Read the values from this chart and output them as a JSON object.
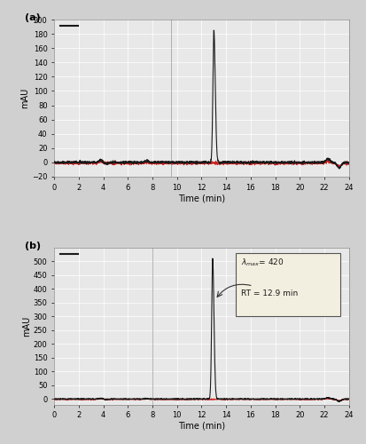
{
  "fig_bg": "#d0d0d0",
  "plot_bg": "#e8e8e8",
  "grid_color": "#ffffff",
  "panel_a": {
    "label": "(a)",
    "ylabel": "mAU",
    "xlabel": "Time (min)",
    "xlim": [
      0,
      24
    ],
    "ylim": [
      -20,
      200
    ],
    "yticks": [
      -20,
      0,
      20,
      40,
      60,
      80,
      100,
      120,
      140,
      160,
      180,
      200
    ],
    "xticks": [
      0,
      2,
      4,
      6,
      8,
      10,
      12,
      14,
      16,
      18,
      20,
      22,
      24
    ],
    "peak_time": 13.0,
    "peak_height": 185,
    "baseline_noise": 2.0,
    "vline_x": 9.5
  },
  "panel_b": {
    "label": "(b)",
    "ylabel": "mAU",
    "xlabel": "Time (min)",
    "xlim": [
      0,
      24
    ],
    "ylim": [
      -20,
      550
    ],
    "yticks": [
      0,
      50,
      100,
      150,
      200,
      250,
      300,
      350,
      400,
      450,
      500
    ],
    "xticks": [
      0,
      2,
      4,
      6,
      8,
      10,
      12,
      14,
      16,
      18,
      20,
      22,
      24
    ],
    "peak_time": 12.9,
    "peak_height": 510,
    "baseline_noise": 2.0,
    "vline_x": 8.0,
    "annotation_text": "λ max = 420\n\nRT = 12.9 min"
  },
  "line_color_black": "#1a1a1a",
  "line_color_red": "#cc2222"
}
